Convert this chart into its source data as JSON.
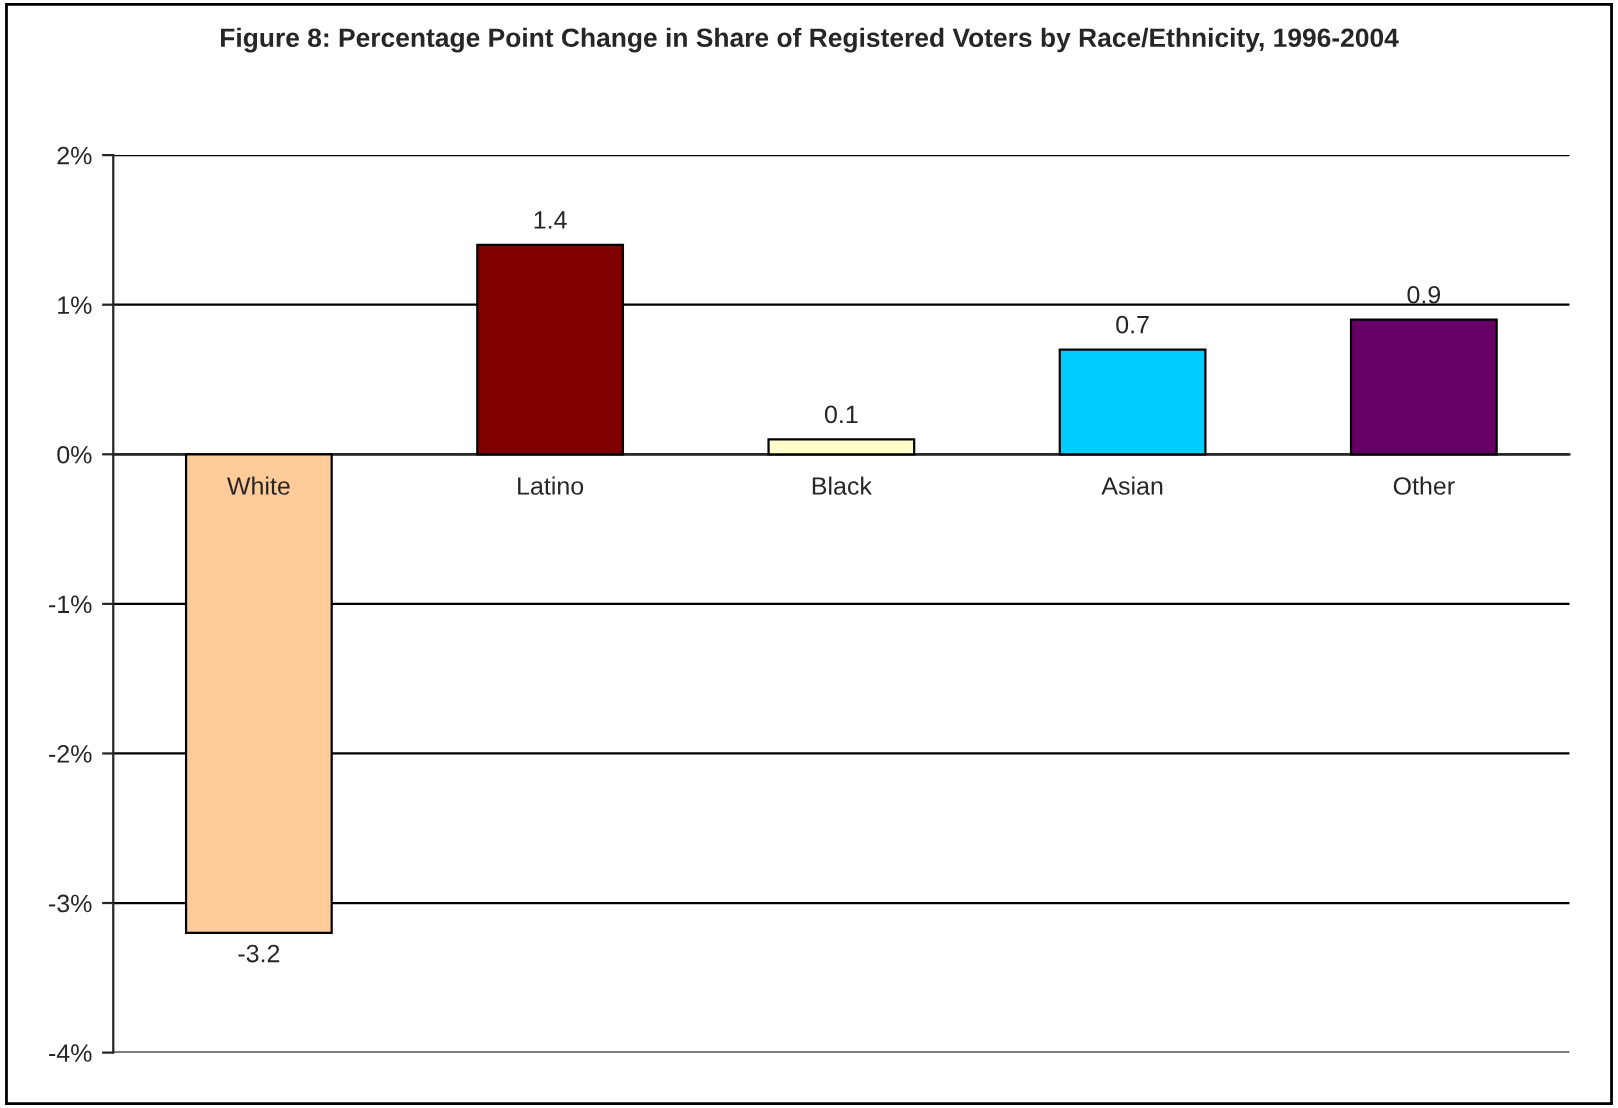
{
  "chart_data": {
    "type": "bar",
    "title": "Figure 8: Percentage Point Change in Share of Registered Voters by Race/Ethnicity, 1996-2004",
    "categories": [
      "White",
      "Latino",
      "Black",
      "Asian",
      "Other"
    ],
    "values": [
      -3.2,
      1.4,
      0.1,
      0.7,
      0.9
    ],
    "colors": [
      "#ffcc99",
      "#800000",
      "#ffffcc",
      "#00ccff",
      "#660066"
    ],
    "ylim": [
      -4,
      2
    ],
    "yticks": [
      {
        "value": -4,
        "label": "-4%"
      },
      {
        "value": -3,
        "label": "-3%"
      },
      {
        "value": -2,
        "label": "-2%"
      },
      {
        "value": -1,
        "label": "-1%"
      },
      {
        "value": 0,
        "label": "0%"
      },
      {
        "value": 1,
        "label": "1%"
      },
      {
        "value": 2,
        "label": "2%"
      }
    ],
    "grid": "y",
    "data_labels": true
  }
}
